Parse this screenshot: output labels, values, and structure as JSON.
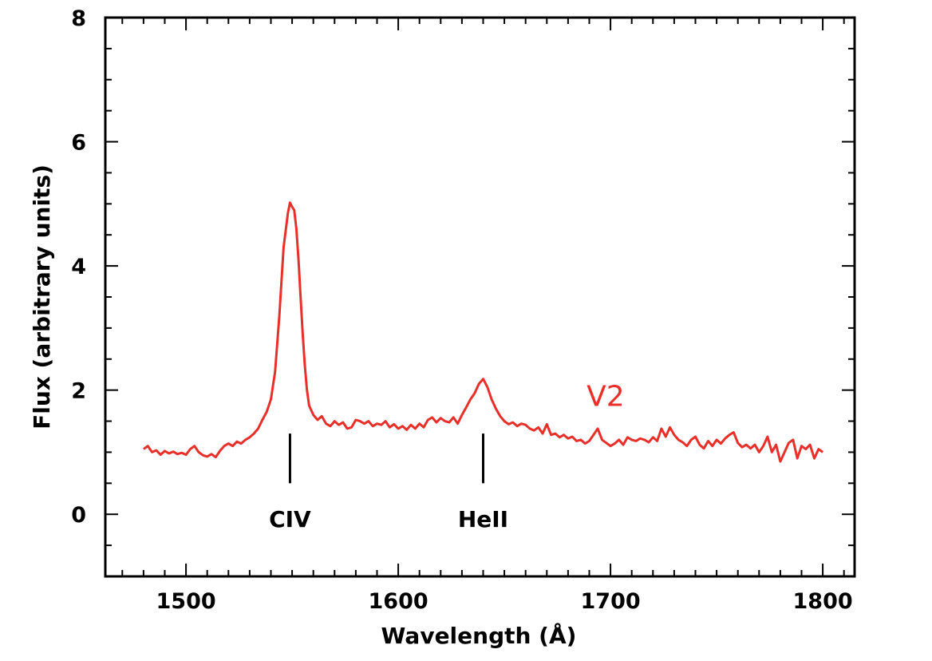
{
  "chart_data": {
    "type": "line",
    "title": "",
    "xlabel": "Wavelength (Å)",
    "ylabel": "Flux (arbitrary units)",
    "xlim": [
      1462,
      1815
    ],
    "ylim": [
      -1,
      8
    ],
    "x_ticks": [
      1500,
      1600,
      1700,
      1800
    ],
    "y_ticks": [
      0,
      2,
      4,
      6,
      8
    ],
    "grid": false,
    "series": [
      {
        "name": "V2",
        "color": "#e8302a",
        "points": [
          [
            1480,
            1.05
          ],
          [
            1482,
            1.1
          ],
          [
            1484,
            1.0
          ],
          [
            1486,
            1.03
          ],
          [
            1488,
            0.96
          ],
          [
            1490,
            1.02
          ],
          [
            1492,
            0.98
          ],
          [
            1494,
            1.01
          ],
          [
            1496,
            0.97
          ],
          [
            1498,
            0.99
          ],
          [
            1500,
            0.96
          ],
          [
            1502,
            1.05
          ],
          [
            1504,
            1.1
          ],
          [
            1506,
            1.0
          ],
          [
            1508,
            0.95
          ],
          [
            1510,
            0.93
          ],
          [
            1512,
            0.97
          ],
          [
            1514,
            0.92
          ],
          [
            1516,
            1.02
          ],
          [
            1518,
            1.1
          ],
          [
            1520,
            1.14
          ],
          [
            1522,
            1.1
          ],
          [
            1524,
            1.17
          ],
          [
            1526,
            1.14
          ],
          [
            1528,
            1.2
          ],
          [
            1530,
            1.24
          ],
          [
            1532,
            1.3
          ],
          [
            1534,
            1.38
          ],
          [
            1536,
            1.52
          ],
          [
            1538,
            1.65
          ],
          [
            1540,
            1.85
          ],
          [
            1542,
            2.3
          ],
          [
            1544,
            3.2
          ],
          [
            1546,
            4.3
          ],
          [
            1548,
            4.85
          ],
          [
            1549,
            5.02
          ],
          [
            1550,
            4.95
          ],
          [
            1551,
            4.9
          ],
          [
            1552,
            4.6
          ],
          [
            1553,
            4.1
          ],
          [
            1554,
            3.5
          ],
          [
            1555,
            2.9
          ],
          [
            1556,
            2.4
          ],
          [
            1557,
            2.0
          ],
          [
            1558,
            1.75
          ],
          [
            1560,
            1.6
          ],
          [
            1562,
            1.52
          ],
          [
            1564,
            1.58
          ],
          [
            1566,
            1.46
          ],
          [
            1568,
            1.42
          ],
          [
            1570,
            1.5
          ],
          [
            1572,
            1.44
          ],
          [
            1574,
            1.48
          ],
          [
            1576,
            1.38
          ],
          [
            1578,
            1.4
          ],
          [
            1580,
            1.52
          ],
          [
            1582,
            1.5
          ],
          [
            1584,
            1.46
          ],
          [
            1586,
            1.5
          ],
          [
            1588,
            1.42
          ],
          [
            1590,
            1.46
          ],
          [
            1592,
            1.44
          ],
          [
            1594,
            1.5
          ],
          [
            1596,
            1.4
          ],
          [
            1598,
            1.45
          ],
          [
            1600,
            1.38
          ],
          [
            1602,
            1.42
          ],
          [
            1604,
            1.36
          ],
          [
            1606,
            1.44
          ],
          [
            1608,
            1.38
          ],
          [
            1610,
            1.46
          ],
          [
            1612,
            1.4
          ],
          [
            1614,
            1.52
          ],
          [
            1616,
            1.56
          ],
          [
            1618,
            1.48
          ],
          [
            1620,
            1.55
          ],
          [
            1622,
            1.5
          ],
          [
            1624,
            1.48
          ],
          [
            1626,
            1.56
          ],
          [
            1628,
            1.46
          ],
          [
            1630,
            1.6
          ],
          [
            1632,
            1.72
          ],
          [
            1634,
            1.85
          ],
          [
            1636,
            1.95
          ],
          [
            1638,
            2.1
          ],
          [
            1640,
            2.18
          ],
          [
            1642,
            2.05
          ],
          [
            1644,
            1.85
          ],
          [
            1646,
            1.7
          ],
          [
            1648,
            1.58
          ],
          [
            1650,
            1.5
          ],
          [
            1652,
            1.45
          ],
          [
            1654,
            1.48
          ],
          [
            1656,
            1.42
          ],
          [
            1658,
            1.46
          ],
          [
            1660,
            1.44
          ],
          [
            1662,
            1.38
          ],
          [
            1664,
            1.35
          ],
          [
            1666,
            1.4
          ],
          [
            1668,
            1.3
          ],
          [
            1670,
            1.45
          ],
          [
            1672,
            1.28
          ],
          [
            1674,
            1.3
          ],
          [
            1676,
            1.24
          ],
          [
            1678,
            1.28
          ],
          [
            1680,
            1.22
          ],
          [
            1682,
            1.25
          ],
          [
            1684,
            1.18
          ],
          [
            1686,
            1.2
          ],
          [
            1688,
            1.14
          ],
          [
            1690,
            1.18
          ],
          [
            1692,
            1.28
          ],
          [
            1694,
            1.38
          ],
          [
            1696,
            1.2
          ],
          [
            1698,
            1.15
          ],
          [
            1700,
            1.1
          ],
          [
            1702,
            1.14
          ],
          [
            1704,
            1.2
          ],
          [
            1706,
            1.12
          ],
          [
            1708,
            1.24
          ],
          [
            1710,
            1.2
          ],
          [
            1712,
            1.18
          ],
          [
            1714,
            1.22
          ],
          [
            1716,
            1.2
          ],
          [
            1718,
            1.16
          ],
          [
            1720,
            1.24
          ],
          [
            1722,
            1.18
          ],
          [
            1724,
            1.38
          ],
          [
            1726,
            1.25
          ],
          [
            1728,
            1.4
          ],
          [
            1730,
            1.28
          ],
          [
            1732,
            1.2
          ],
          [
            1734,
            1.16
          ],
          [
            1736,
            1.1
          ],
          [
            1738,
            1.2
          ],
          [
            1740,
            1.25
          ],
          [
            1742,
            1.12
          ],
          [
            1744,
            1.06
          ],
          [
            1746,
            1.18
          ],
          [
            1748,
            1.1
          ],
          [
            1750,
            1.2
          ],
          [
            1752,
            1.14
          ],
          [
            1754,
            1.22
          ],
          [
            1756,
            1.28
          ],
          [
            1758,
            1.32
          ],
          [
            1760,
            1.15
          ],
          [
            1762,
            1.08
          ],
          [
            1764,
            1.12
          ],
          [
            1766,
            1.06
          ],
          [
            1768,
            1.12
          ],
          [
            1770,
            1.0
          ],
          [
            1772,
            1.1
          ],
          [
            1774,
            1.25
          ],
          [
            1776,
            1.0
          ],
          [
            1778,
            1.12
          ],
          [
            1780,
            0.85
          ],
          [
            1782,
            1.0
          ],
          [
            1784,
            1.15
          ],
          [
            1786,
            1.2
          ],
          [
            1788,
            0.9
          ],
          [
            1790,
            1.1
          ],
          [
            1792,
            1.05
          ],
          [
            1794,
            1.12
          ],
          [
            1796,
            0.9
          ],
          [
            1798,
            1.05
          ],
          [
            1800,
            1.0
          ]
        ]
      }
    ],
    "annotations": [
      {
        "text": "CIV",
        "x": 1549,
        "line_from": 0.5,
        "line_to": 1.3
      },
      {
        "text": "HeII",
        "x": 1640,
        "line_from": 0.5,
        "line_to": 1.3
      }
    ],
    "series_label": {
      "text": "V2",
      "x": 1700,
      "y": 1.9
    }
  }
}
